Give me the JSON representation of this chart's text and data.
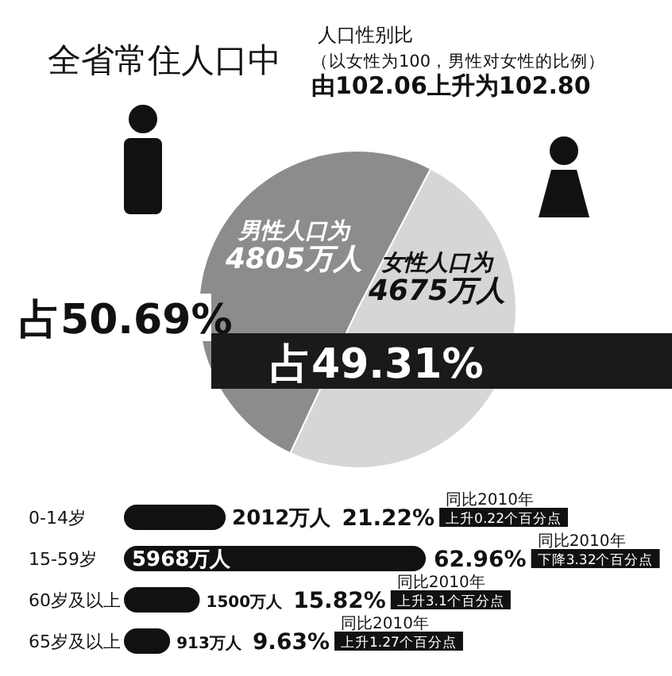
{
  "chart_data": [
    {
      "type": "pie",
      "title": "全省常住人口中",
      "subtitle": "人口性别比",
      "annotations": [
        "（以女性为100，男性对女性的比例）",
        "由102.06上升为102.80"
      ],
      "categories": [
        "男性人口为4805万人",
        "女性人口为4675万人"
      ],
      "values": [
        50.69,
        49.31
      ],
      "value_labels": [
        "占50.69%",
        "占49.31%"
      ],
      "colors": [
        "#8c8c8c",
        "#d6d6d6"
      ]
    },
    {
      "type": "bar",
      "orientation": "horizontal",
      "categories": [
        "0-14岁",
        "15-59岁",
        "60岁及以上",
        "65岁及以上"
      ],
      "values": [
        2012,
        5968,
        1500,
        913
      ],
      "value_labels": [
        "2012万人",
        "5968万人",
        "1500万人",
        "913万人"
      ],
      "color": "#111111",
      "annotations": [
        "21.22%",
        "同比2010年",
        "上升0.22个百分点",
        "62.96%",
        "同比2010年",
        "下降3.32个百分点",
        "15.82%",
        "同比2010年",
        "上升3.1个百分点",
        "9.63%",
        "同比2010年",
        "上升1.27个百分点"
      ]
    }
  ]
}
